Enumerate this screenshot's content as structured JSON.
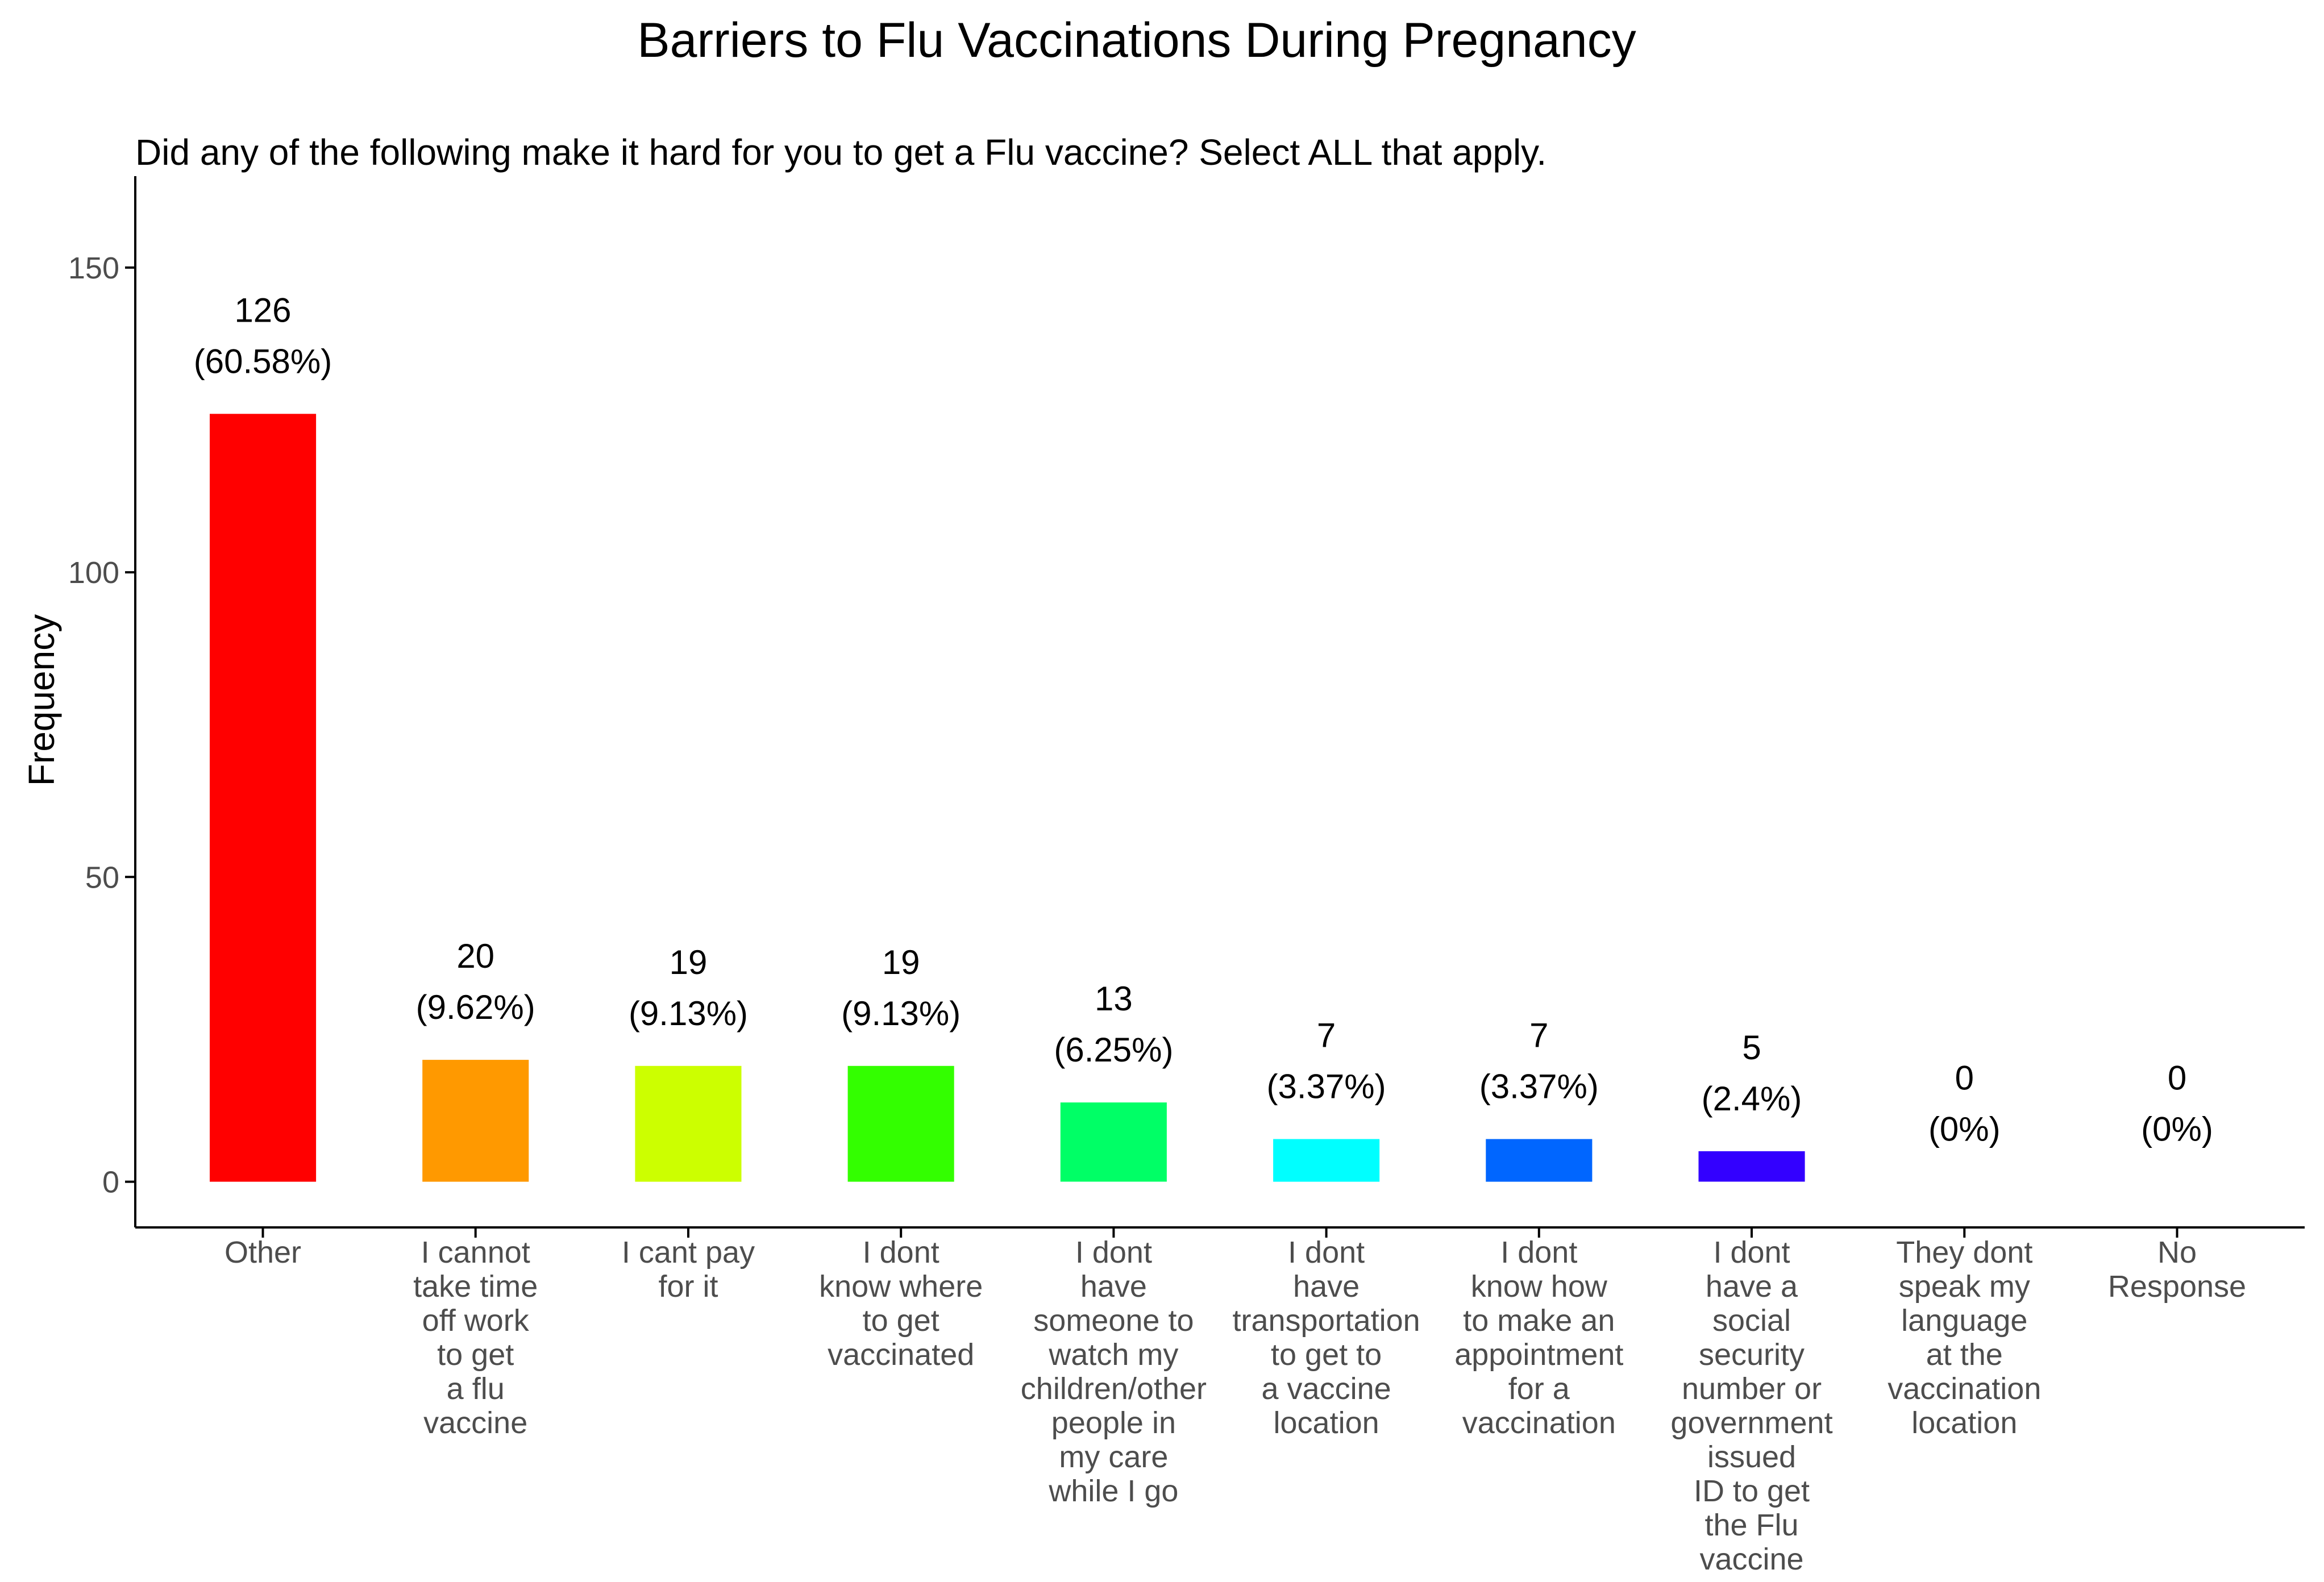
{
  "chart_data": {
    "type": "bar",
    "title": "Barriers to Flu Vaccinations During Pregnancy",
    "subtitle": "Did any of the following make it hard for you to get a Flu vaccine? Select ALL that apply.",
    "xlabel": "",
    "ylabel": "Frequency",
    "ylim": [
      -7.5,
      165
    ],
    "yticks": [
      0,
      50,
      100,
      150
    ],
    "grid": false,
    "legend": "none",
    "categories": [
      [
        "Other"
      ],
      [
        "I cannot",
        "take time",
        "off work",
        "to get",
        "a flu",
        "vaccine"
      ],
      [
        "I cant pay",
        "for it"
      ],
      [
        "I dont",
        "know where",
        "to get",
        "vaccinated"
      ],
      [
        "I dont",
        "have",
        "someone to",
        "watch my",
        "children/other",
        "people in",
        "my care",
        "while I go"
      ],
      [
        "I dont",
        "have",
        "transportation",
        "to get to",
        "a vaccine",
        "location"
      ],
      [
        "I dont",
        "know how",
        "to make an",
        "appointment",
        "for a",
        "vaccination"
      ],
      [
        "I dont",
        "have a",
        "social",
        "security",
        "number or",
        "government",
        "issued",
        "ID to get",
        "the Flu",
        "vaccine"
      ],
      [
        "They dont",
        "speak my",
        "language",
        "at the",
        "vaccination",
        "location"
      ],
      [
        "No",
        "Response"
      ]
    ],
    "values": [
      126,
      20,
      19,
      19,
      13,
      7,
      7,
      5,
      0,
      0
    ],
    "percent_labels": [
      "(60.58%)",
      "(9.62%)",
      "(9.13%)",
      "(9.13%)",
      "(6.25%)",
      "(3.37%)",
      "(3.37%)",
      "(2.4%)",
      "(0%)",
      "(0%)"
    ],
    "colors": [
      "#FF0000",
      "#FF9900",
      "#CCFF00",
      "#33FF00",
      "#00FF66",
      "#00FFFF",
      "#0066FF",
      "#3300FF",
      "#CC00FF",
      "#FF0099"
    ]
  }
}
